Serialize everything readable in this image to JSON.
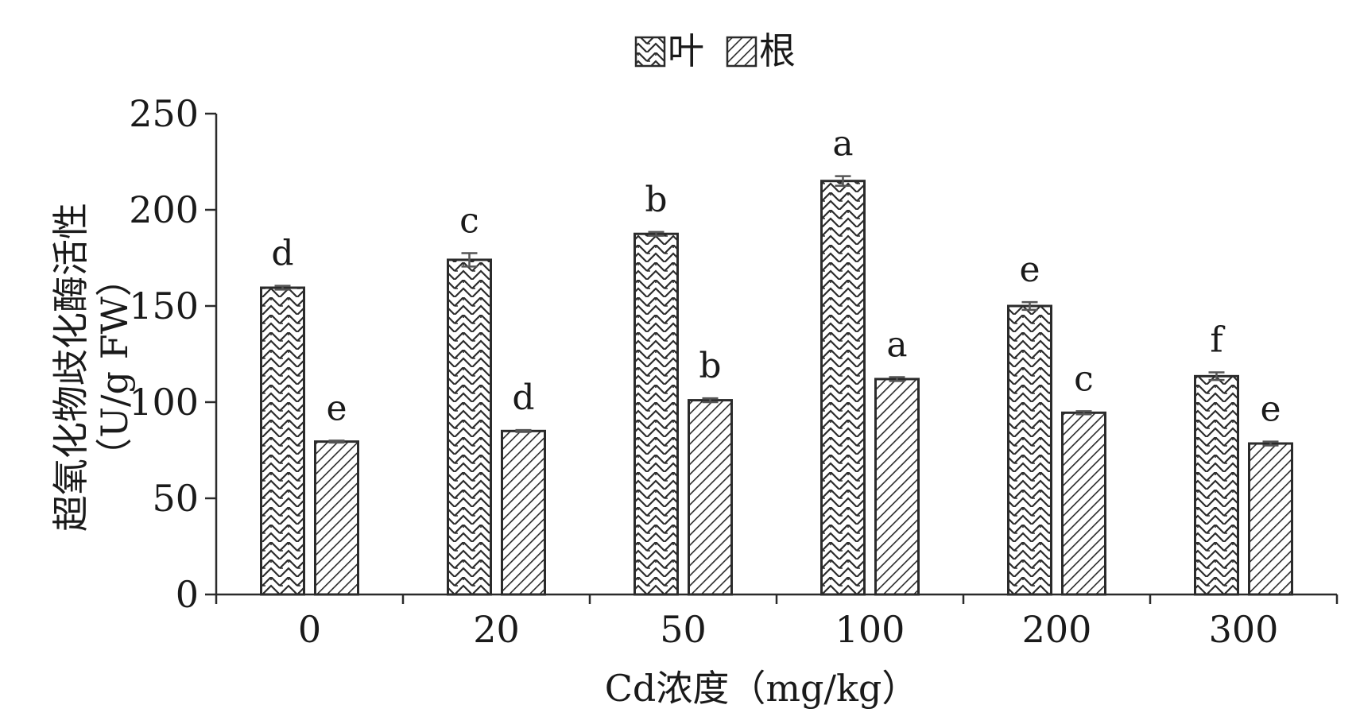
{
  "chart_data": {
    "type": "bar",
    "title": "",
    "xlabel": "Cd浓度（mg/kg）",
    "ylabel_line1": "超氧化物歧化酶活性",
    "ylabel_line2": "（U/g FW）",
    "categories": [
      "0",
      "20",
      "50",
      "100",
      "200",
      "300"
    ],
    "ylim": [
      0,
      250
    ],
    "yticks": [
      "0",
      "50",
      "100",
      "150",
      "200",
      "250"
    ],
    "legend_position": "top-center",
    "series": [
      {
        "name": "叶",
        "pattern": "zigzag",
        "values": [
          159.5,
          174,
          187.5,
          215,
          150,
          113.5
        ],
        "errors": [
          1,
          3.5,
          1,
          2.5,
          2,
          2
        ],
        "letters": [
          "d",
          "c",
          "b",
          "a",
          "e",
          "f"
        ]
      },
      {
        "name": "根",
        "pattern": "diagonal-hatch",
        "values": [
          79.5,
          85,
          101,
          112,
          94.5,
          78.5
        ],
        "errors": [
          0.5,
          0.5,
          1,
          1,
          0.8,
          1
        ],
        "letters": [
          "e",
          "d",
          "b",
          "a",
          "c",
          "e"
        ]
      }
    ],
    "colors": {
      "ink": "#2b2b2b",
      "background": "#ffffff"
    }
  }
}
